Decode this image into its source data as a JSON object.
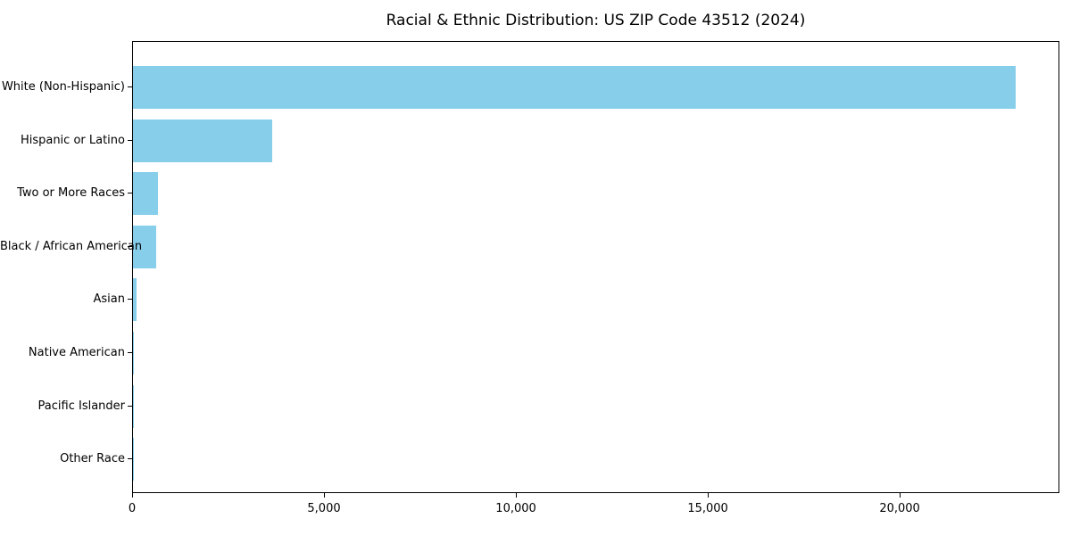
{
  "chart_data": {
    "type": "bar",
    "orientation": "horizontal",
    "title": "Racial & Ethnic Distribution: US ZIP Code 43512 (2024)",
    "categories": [
      "White (Non-Hispanic)",
      "Hispanic or Latino",
      "Two or More Races",
      "Black / African American",
      "Asian",
      "Native American",
      "Pacific Islander",
      "Other Race"
    ],
    "values": [
      23000,
      3620,
      640,
      615,
      100,
      30,
      15,
      10
    ],
    "xlabel": "",
    "ylabel": "",
    "xlim": [
      0,
      24160
    ],
    "xticks": [
      0,
      5000,
      10000,
      15000,
      20000
    ],
    "xtick_labels": [
      "0",
      "5,000",
      "10,000",
      "15,000",
      "20,000"
    ],
    "bar_color": "#87CEEB",
    "axis_color": "#000000",
    "grid": false,
    "legend": null
  }
}
